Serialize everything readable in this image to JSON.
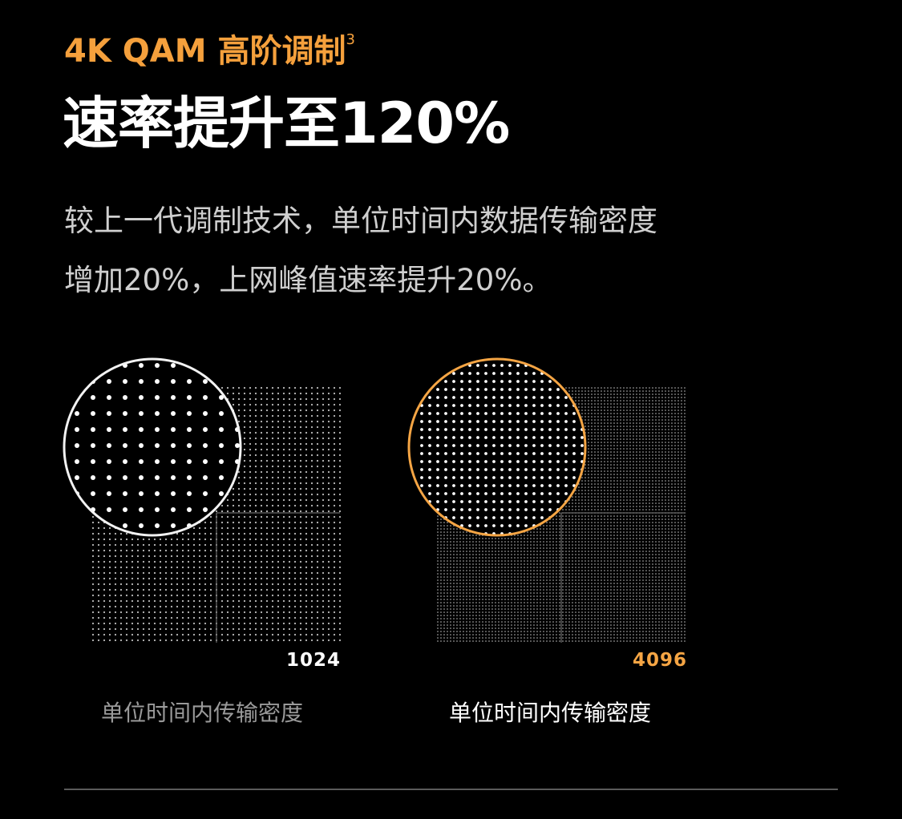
{
  "heading": {
    "eyebrow": "4K QAM 高阶调制",
    "footnote": "3",
    "title": "速率提升至120%"
  },
  "description": {
    "line1": "较上一代调制技术，单位时间内数据传输密度",
    "line2": "增加20%，上网峰值速率提升20%。"
  },
  "comparison": [
    {
      "value": "1024",
      "caption": "单位时间内传输密度",
      "accent_color": "#f2f2f2",
      "value_color": "#ffffff",
      "caption_color": "#9a9a9a"
    },
    {
      "value": "4096",
      "caption": "单位时间内传输密度",
      "accent_color": "#f5a544",
      "value_color": "#f5a544",
      "caption_color": "#ffffff"
    }
  ],
  "colors": {
    "background": "#000000",
    "accent": "#f5a03c"
  }
}
